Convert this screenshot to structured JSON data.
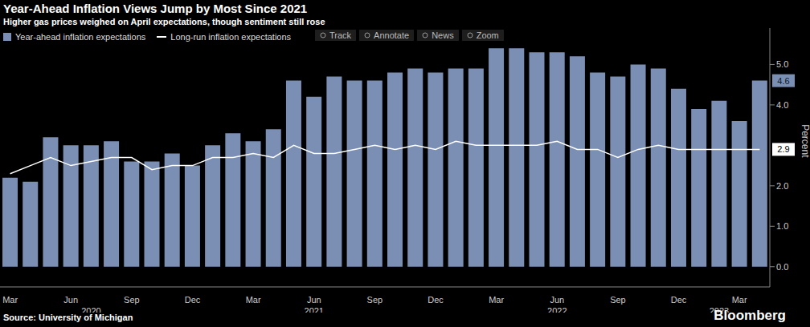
{
  "chart_data": {
    "type": "bar",
    "title": "Year-Ahead Inflation Views Jump by Most Since 2021",
    "subtitle": "Higher gas prices weighed on April expectations, though sentiment still rose",
    "categories": [
      "Mar",
      null,
      null,
      "Jun",
      null,
      null,
      "Sep",
      null,
      null,
      "Dec",
      null,
      null,
      "Mar",
      null,
      null,
      "Jun",
      null,
      null,
      "Sep",
      null,
      null,
      "Dec",
      null,
      null,
      "Mar",
      null,
      null,
      "Jun",
      null,
      null,
      "Sep",
      null,
      null,
      "Dec",
      null,
      null,
      "Mar",
      null
    ],
    "year_labels": [
      null,
      null,
      null,
      null,
      "2020",
      null,
      null,
      null,
      null,
      null,
      null,
      null,
      null,
      null,
      null,
      "2021",
      null,
      null,
      null,
      null,
      null,
      null,
      null,
      null,
      null,
      null,
      null,
      "2022",
      null,
      null,
      null,
      null,
      null,
      null,
      null,
      "2023",
      null,
      null
    ],
    "series": [
      {
        "name": "Year-ahead inflation expectations",
        "type": "bar",
        "color": "#7b8fb4",
        "values": [
          2.2,
          2.1,
          3.2,
          3.0,
          3.0,
          3.1,
          2.6,
          2.6,
          2.8,
          2.5,
          3.0,
          3.3,
          3.1,
          3.4,
          4.6,
          4.2,
          4.7,
          4.6,
          4.6,
          4.8,
          4.9,
          4.8,
          4.9,
          4.9,
          5.4,
          5.4,
          5.3,
          5.3,
          5.2,
          4.8,
          4.7,
          5.0,
          4.9,
          4.4,
          3.9,
          4.1,
          3.6,
          4.6
        ],
        "value_labels": [
          null,
          null,
          null,
          null,
          null,
          null,
          null,
          null,
          null,
          null,
          null,
          null,
          null,
          null,
          null,
          null,
          null,
          null,
          null,
          null,
          null,
          null,
          null,
          null,
          null,
          null,
          null,
          null,
          null,
          null,
          null,
          null,
          null,
          null,
          null,
          null,
          null,
          "4.6"
        ]
      },
      {
        "name": "Long-run inflation expectations",
        "type": "line",
        "color": "#ffffff",
        "values": [
          2.3,
          2.5,
          2.7,
          2.5,
          2.6,
          2.7,
          2.7,
          2.4,
          2.5,
          2.5,
          2.7,
          2.7,
          2.8,
          2.7,
          3.0,
          2.8,
          2.8,
          2.9,
          3.0,
          2.9,
          3.0,
          2.9,
          3.1,
          3.0,
          3.0,
          3.0,
          3.0,
          3.1,
          2.9,
          2.9,
          2.7,
          2.9,
          3.0,
          2.9,
          2.9,
          2.9,
          2.9,
          2.9
        ],
        "value_labels": [
          null,
          null,
          null,
          null,
          null,
          null,
          null,
          null,
          null,
          null,
          null,
          null,
          null,
          null,
          null,
          null,
          null,
          null,
          null,
          null,
          null,
          null,
          null,
          null,
          null,
          null,
          null,
          null,
          null,
          null,
          null,
          null,
          null,
          null,
          null,
          null,
          null,
          "2.9"
        ]
      }
    ],
    "ylim": [
      -0.5,
      5.9
    ],
    "yticks": [
      {
        "value": 0,
        "label": "0.0"
      },
      {
        "value": 1,
        "label": "1.0"
      },
      {
        "value": 2,
        "label": "2.0"
      },
      {
        "value": 4,
        "label": "4.0"
      },
      {
        "value": 5,
        "label": "5.0"
      }
    ],
    "y_label": "Percent",
    "legend": "upper left",
    "grid": false,
    "toolbar": [
      "Track",
      "Annotate",
      "News",
      "Zoom"
    ],
    "source": "Source: University of Michigan",
    "logo": "Bloomberg"
  }
}
